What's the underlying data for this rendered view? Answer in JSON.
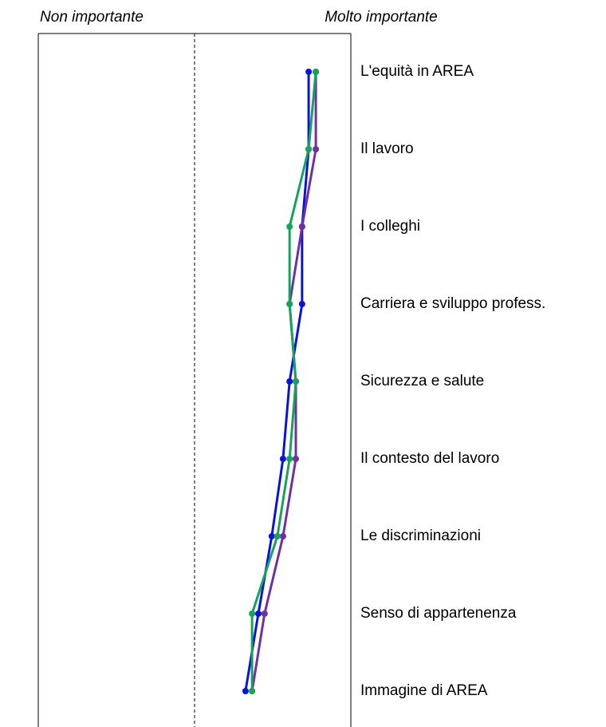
{
  "chart_data": {
    "type": "line",
    "orientation": "horizontal",
    "left_label": "Non importante",
    "right_label": "Molto importante",
    "categories": [
      "L'equità in AREA",
      "Il lavoro",
      "I colleghi",
      "Carriera e sviluppo profess.",
      "Sicurezza e salute",
      "Il contesto del lavoro",
      "Le discriminazioni",
      "Senso di appartenenza",
      "Immagine di AREA"
    ],
    "xlim": [
      0,
      100
    ],
    "series": [
      {
        "color": "#0a14d8",
        "values": [
          86.5,
          86.5,
          84.4,
          84.4,
          80.4,
          78.3,
          74.7,
          70.4,
          66.3
        ]
      },
      {
        "color": "#7030a0",
        "values": [
          88.8,
          88.8,
          84.4,
          80.4,
          82.4,
          82.4,
          78.3,
          72.4,
          68.4
        ]
      },
      {
        "color": "#16a45a",
        "values": [
          88.8,
          86.5,
          80.4,
          80.4,
          82.4,
          80.4,
          76.5,
          68.4,
          68.4
        ]
      }
    ]
  }
}
